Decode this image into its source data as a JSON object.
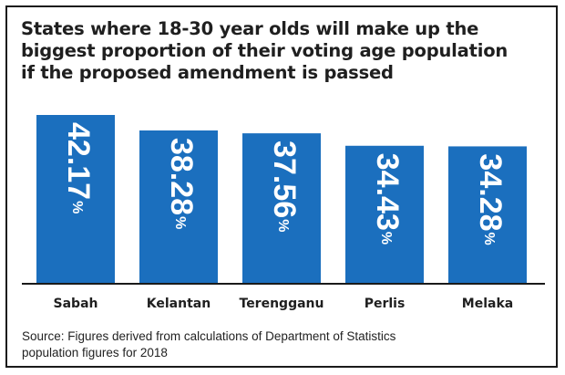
{
  "title_lines": [
    "States where 18-30 year olds will make up the",
    "biggest proportion of their voting age population",
    "if the proposed amendment is passed"
  ],
  "source_lines": [
    "Source: Figures derived from calculations of Department of Statistics",
    "population figures for 2018"
  ],
  "colors": {
    "bar": "#1b6fbe",
    "label": "#ffffff",
    "axis": "#1a1a1a"
  },
  "chart_data": {
    "type": "bar",
    "title": "States where 18-30 year olds will make up the biggest proportion of their voting age population if the proposed amendment is passed",
    "categories": [
      "Sabah",
      "Kelantan",
      "Terengganu",
      "Perlis",
      "Melaka"
    ],
    "values": [
      42.17,
      38.28,
      37.56,
      34.43,
      34.28
    ],
    "value_labels": [
      "42.17",
      "38.28",
      "37.56",
      "34.43",
      "34.28"
    ],
    "unit": "%",
    "xlabel": "",
    "ylabel": "",
    "ylim": [
      0,
      45
    ],
    "grid": false,
    "legend": "none"
  }
}
